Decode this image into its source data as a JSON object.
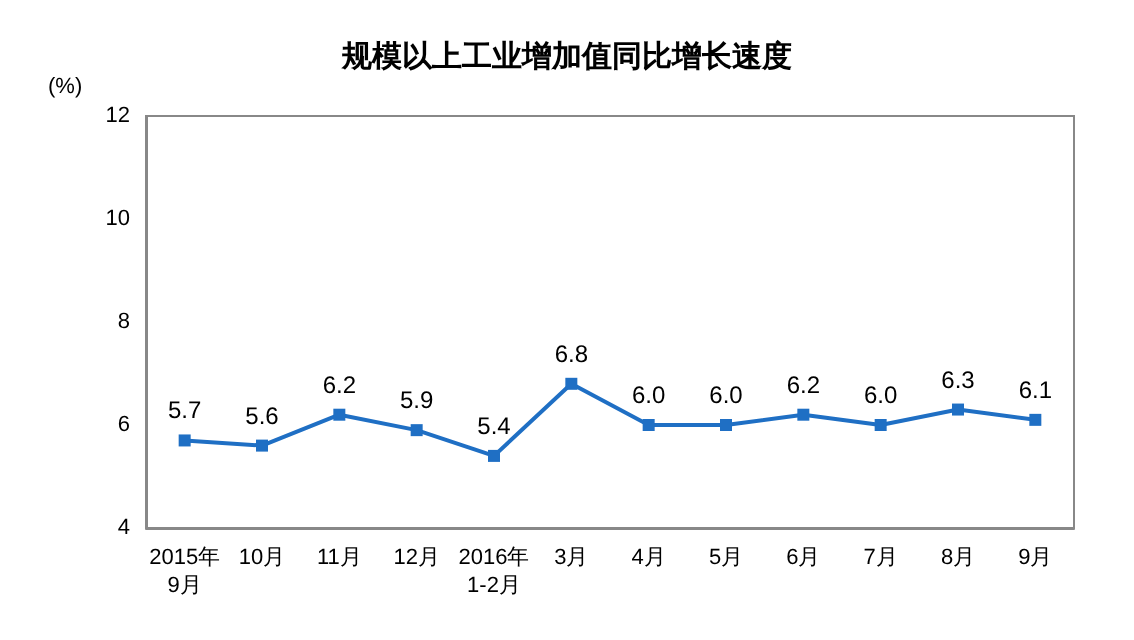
{
  "chart_data": {
    "type": "line",
    "title": "规模以上工业增加值同比增长速度",
    "ylabel": "(%)",
    "categories": [
      "2015年\n9月",
      "10月",
      "11月",
      "12月",
      "2016年\n1-2月",
      "3月",
      "4月",
      "5月",
      "6月",
      "7月",
      "8月",
      "9月"
    ],
    "values": [
      5.7,
      5.6,
      6.2,
      5.9,
      5.4,
      6.8,
      6.0,
      6.0,
      6.2,
      6.0,
      6.3,
      6.1
    ],
    "value_labels": [
      "5.7",
      "5.6",
      "6.2",
      "5.9",
      "5.4",
      "6.8",
      "6.0",
      "6.0",
      "6.2",
      "6.0",
      "6.3",
      "6.1"
    ],
    "color": "#1f6fc4",
    "ylim": [
      4,
      12
    ],
    "yticks": [
      4,
      6,
      8,
      10,
      12
    ],
    "grid": false,
    "marker": "square",
    "line_style": "solid"
  }
}
